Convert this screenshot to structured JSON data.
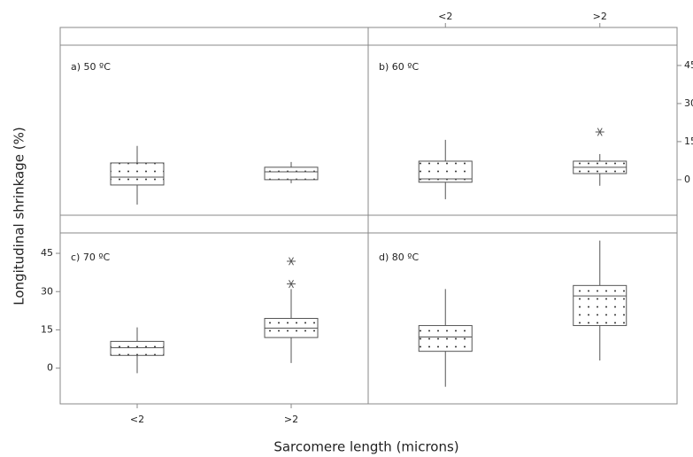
{
  "chart_data": {
    "type": "box",
    "xlabel": "Sarcomere length (microns)",
    "ylabel": "Longitudinal shrinkage (%)",
    "categories": [
      "<2",
      ">2"
    ],
    "ylim": [
      -14,
      53
    ],
    "yticks": [
      0,
      15,
      30,
      45
    ],
    "color": "#555555",
    "panels": [
      {
        "label": "a) 50 ºC",
        "boxes": [
          {
            "whisker_low": -9.8,
            "q1": -2.1,
            "median": 1,
            "q3": 6.6,
            "whisker_high": 13.3,
            "outliers": []
          },
          {
            "whisker_low": -1.4,
            "q1": 0,
            "median": 3.1,
            "q3": 4.9,
            "whisker_high": 7,
            "outliers": []
          }
        ]
      },
      {
        "label": "b) 60 ºC",
        "boxes": [
          {
            "whisker_low": -7.7,
            "q1": -1,
            "median": 0.3,
            "q3": 7.3,
            "whisker_high": 15.7,
            "outliers": []
          },
          {
            "whisker_low": -2.4,
            "q1": 2.4,
            "median": 4.9,
            "q3": 7.3,
            "whisker_high": 10.1,
            "outliers": [
              18.8
            ]
          }
        ]
      },
      {
        "label": "c) 70 ºC",
        "boxes": [
          {
            "whisker_low": -2,
            "q1": 5,
            "median": 8,
            "q3": 10.5,
            "whisker_high": 16,
            "outliers": []
          },
          {
            "whisker_low": 2,
            "q1": 12,
            "median": 15.7,
            "q3": 19.5,
            "whisker_high": 31,
            "outliers": [
              33,
              41.9
            ]
          }
        ]
      },
      {
        "label": "d) 80 ºC",
        "boxes": [
          {
            "whisker_low": -7.3,
            "q1": 6.6,
            "median": 12.2,
            "q3": 16.7,
            "whisker_high": 31,
            "outliers": []
          },
          {
            "whisker_low": 3,
            "q1": 16.7,
            "median": 28.3,
            "q3": 32.4,
            "whisker_high": 50,
            "outliers": []
          }
        ]
      }
    ]
  }
}
